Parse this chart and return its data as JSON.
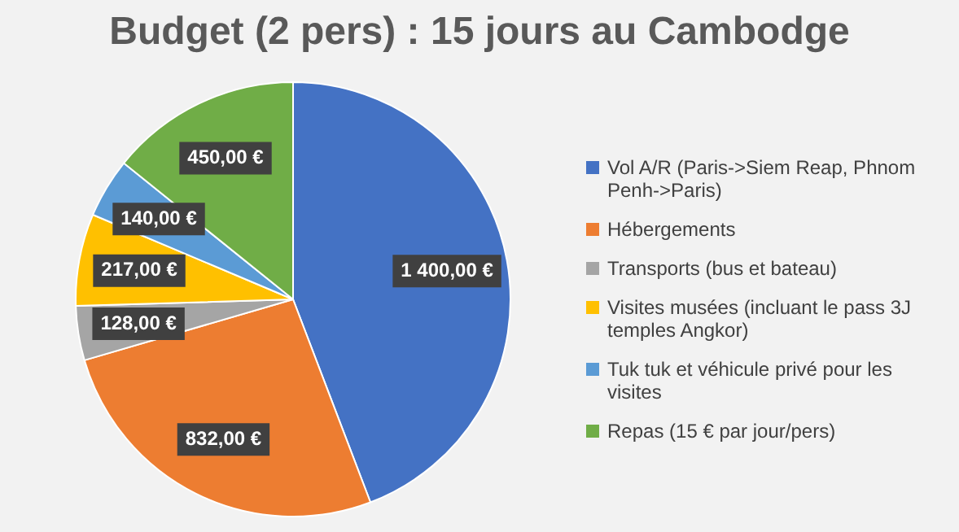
{
  "chart_data": {
    "type": "pie",
    "title": "Budget (2 pers) : 15 jours au Cambodge",
    "categories": [
      "Vol A/R (Paris->Siem Reap, Phnom Penh->Paris)",
      "Hébergements",
      "Transports (bus et bateau)",
      "Visites musées (incluant le pass 3J temples Angkor)",
      "Tuk tuk et véhicule privé pour les visites",
      "Repas (15 € par jour/pers)"
    ],
    "values": [
      1400,
      832,
      128,
      217,
      140,
      450
    ],
    "value_labels": [
      "1 400,00 €",
      "832,00 €",
      "128,00 €",
      "217,00 €",
      "140,00 €",
      "450,00 €"
    ],
    "colors": [
      "#4472c4",
      "#ed7d31",
      "#a5a5a5",
      "#ffc000",
      "#5b9bd5",
      "#70ad47"
    ],
    "legend": "right"
  }
}
